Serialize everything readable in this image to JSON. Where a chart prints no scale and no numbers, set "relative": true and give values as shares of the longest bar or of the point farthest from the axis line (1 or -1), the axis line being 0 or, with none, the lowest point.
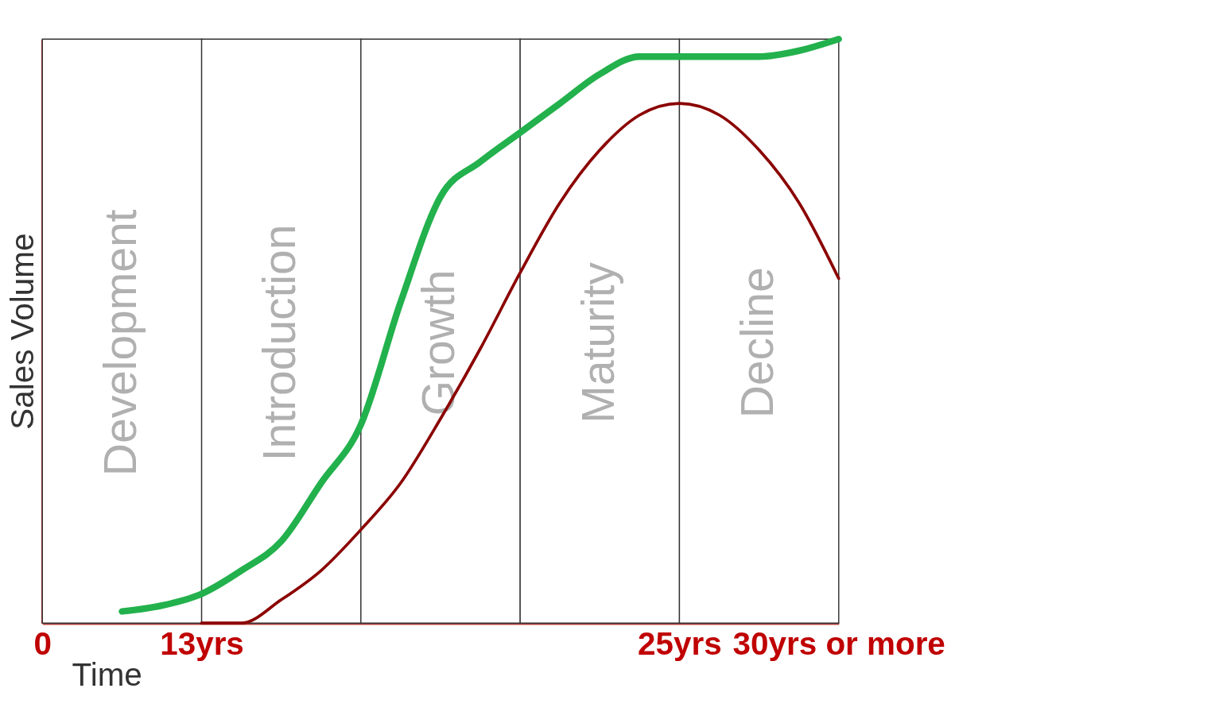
{
  "chart_data": {
    "type": "line",
    "relative": true,
    "xlabel": "Time",
    "ylabel": "Sales Volume",
    "categories": [
      "0",
      null,
      null,
      null,
      "13yrs",
      null,
      null,
      null,
      null,
      null,
      null,
      null,
      null,
      null,
      null,
      null,
      "25yrs",
      null,
      null,
      null,
      "30yrs or more"
    ],
    "annotations": [
      "Development",
      "Introduction",
      "Growth",
      "Maturity",
      "Decline"
    ],
    "series": [
      {
        "color": "#22b14c",
        "values": [
          null,
          null,
          0.02,
          0.03,
          0.05,
          0.09,
          0.14,
          0.24,
          0.34,
          0.55,
          0.73,
          0.79,
          0.84,
          0.89,
          0.94,
          0.97,
          0.97,
          0.97,
          0.97,
          0.98,
          1.0
        ]
      },
      {
        "color": "#8b0000",
        "values": [
          null,
          null,
          null,
          null,
          0.0,
          0.0,
          0.04,
          0.09,
          0.16,
          0.24,
          0.35,
          0.47,
          0.6,
          0.72,
          0.81,
          0.87,
          0.89,
          0.87,
          0.81,
          0.72,
          0.59
        ]
      }
    ],
    "line_style": "solid"
  }
}
